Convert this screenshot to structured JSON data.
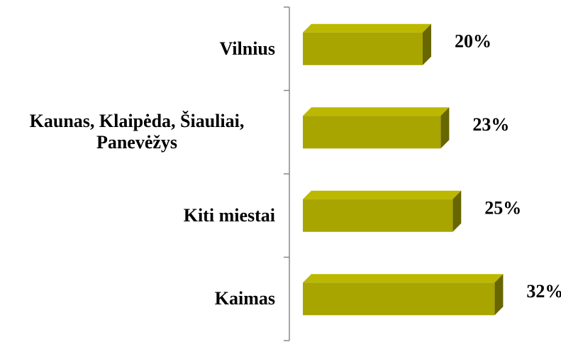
{
  "chart_data": {
    "type": "bar",
    "orientation": "horizontal",
    "categories": [
      "Vilnius",
      "Kaunas, Klaipėda, Šiauliai, Panevėžys",
      "Kiti miestai",
      "Kaimas"
    ],
    "values": [
      20,
      23,
      25,
      32
    ],
    "value_labels": [
      "20%",
      "23%",
      "25%",
      "32%"
    ],
    "color": "#a8a400"
  }
}
